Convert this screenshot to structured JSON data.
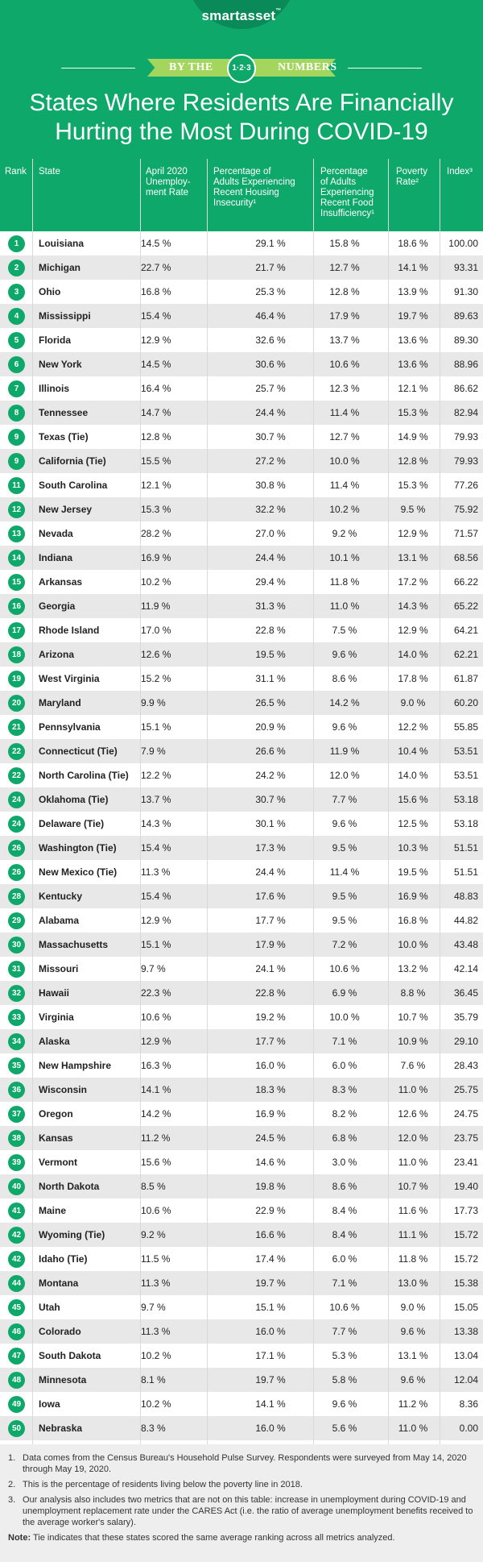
{
  "header": {
    "logo": "smartasset",
    "logo_mark": "™",
    "ribbon_left": "BY THE",
    "ribbon_center": "1·2·3",
    "ribbon_right": "NUMBERS",
    "title_line1": "States Where Residents Are Financially",
    "title_line2": "Hurting the Most During COVID-19"
  },
  "columns": {
    "rank": "Rank",
    "state": "State",
    "unemployment": [
      "April 2020",
      "Unemploy-",
      "ment Rate"
    ],
    "housing": [
      "Percentage of",
      "Adults Experiencing",
      "Recent Housing",
      "Insecurity¹"
    ],
    "food": [
      "Percentage",
      "of Adults",
      "Experiencing",
      "Recent Food",
      "Insufficiency¹"
    ],
    "poverty": [
      "Poverty",
      "Rate²"
    ],
    "index": "Index³"
  },
  "rows": [
    {
      "rank": "1",
      "state": "Louisiana",
      "unemployment": "14.5 %",
      "housing": "29.1 %",
      "food": "15.8 %",
      "poverty": "18.6 %",
      "index": "100.00"
    },
    {
      "rank": "2",
      "state": "Michigan",
      "unemployment": "22.7 %",
      "housing": "21.7 %",
      "food": "12.7 %",
      "poverty": "14.1 %",
      "index": "93.31"
    },
    {
      "rank": "3",
      "state": "Ohio",
      "unemployment": "16.8 %",
      "housing": "25.3 %",
      "food": "12.8 %",
      "poverty": "13.9 %",
      "index": "91.30"
    },
    {
      "rank": "4",
      "state": "Mississippi",
      "unemployment": "15.4 %",
      "housing": "46.4 %",
      "food": "17.9 %",
      "poverty": "19.7 %",
      "index": "89.63"
    },
    {
      "rank": "5",
      "state": "Florida",
      "unemployment": "12.9 %",
      "housing": "32.6 %",
      "food": "13.7 %",
      "poverty": "13.6 %",
      "index": "89.30"
    },
    {
      "rank": "6",
      "state": "New York",
      "unemployment": "14.5 %",
      "housing": "30.6 %",
      "food": "10.6 %",
      "poverty": "13.6 %",
      "index": "88.96"
    },
    {
      "rank": "7",
      "state": "Illinois",
      "unemployment": "16.4 %",
      "housing": "25.7 %",
      "food": "12.3 %",
      "poverty": "12.1 %",
      "index": "86.62"
    },
    {
      "rank": "8",
      "state": "Tennessee",
      "unemployment": "14.7 %",
      "housing": "24.4 %",
      "food": "11.4 %",
      "poverty": "15.3 %",
      "index": "82.94"
    },
    {
      "rank": "9",
      "state": "Texas (Tie)",
      "unemployment": "12.8 %",
      "housing": "30.7 %",
      "food": "12.7 %",
      "poverty": "14.9 %",
      "index": "79.93"
    },
    {
      "rank": "9",
      "state": "California (Tie)",
      "unemployment": "15.5 %",
      "housing": "27.2 %",
      "food": "10.0 %",
      "poverty": "12.8 %",
      "index": "79.93"
    },
    {
      "rank": "11",
      "state": "South Carolina",
      "unemployment": "12.1 %",
      "housing": "30.8 %",
      "food": "11.4 %",
      "poverty": "15.3 %",
      "index": "77.26"
    },
    {
      "rank": "12",
      "state": "New Jersey",
      "unemployment": "15.3 %",
      "housing": "32.2 %",
      "food": "10.2 %",
      "poverty": "9.5 %",
      "index": "75.92"
    },
    {
      "rank": "13",
      "state": "Nevada",
      "unemployment": "28.2 %",
      "housing": "27.0 %",
      "food": "9.2 %",
      "poverty": "12.9 %",
      "index": "71.57"
    },
    {
      "rank": "14",
      "state": "Indiana",
      "unemployment": "16.9 %",
      "housing": "24.4 %",
      "food": "10.1 %",
      "poverty": "13.1 %",
      "index": "68.56"
    },
    {
      "rank": "15",
      "state": "Arkansas",
      "unemployment": "10.2 %",
      "housing": "29.4 %",
      "food": "11.8 %",
      "poverty": "17.2 %",
      "index": "66.22"
    },
    {
      "rank": "16",
      "state": "Georgia",
      "unemployment": "11.9 %",
      "housing": "31.3 %",
      "food": "11.0 %",
      "poverty": "14.3 %",
      "index": "65.22"
    },
    {
      "rank": "17",
      "state": "Rhode Island",
      "unemployment": "17.0 %",
      "housing": "22.8 %",
      "food": "7.5 %",
      "poverty": "12.9 %",
      "index": "64.21"
    },
    {
      "rank": "18",
      "state": "Arizona",
      "unemployment": "12.6 %",
      "housing": "19.5 %",
      "food": "9.6 %",
      "poverty": "14.0 %",
      "index": "62.21"
    },
    {
      "rank": "19",
      "state": "West Virginia",
      "unemployment": "15.2 %",
      "housing": "31.1 %",
      "food": "8.6 %",
      "poverty": "17.8 %",
      "index": "61.87"
    },
    {
      "rank": "20",
      "state": "Maryland",
      "unemployment": "9.9 %",
      "housing": "26.5 %",
      "food": "14.2 %",
      "poverty": "9.0 %",
      "index": "60.20"
    },
    {
      "rank": "21",
      "state": "Pennsylvania",
      "unemployment": "15.1 %",
      "housing": "20.9 %",
      "food": "9.6 %",
      "poverty": "12.2 %",
      "index": "55.85"
    },
    {
      "rank": "22",
      "state": "Connecticut (Tie)",
      "unemployment": "7.9 %",
      "housing": "26.6 %",
      "food": "11.9 %",
      "poverty": "10.4 %",
      "index": "53.51"
    },
    {
      "rank": "22",
      "state": "North Carolina (Tie)",
      "unemployment": "12.2 %",
      "housing": "24.2 %",
      "food": "12.0 %",
      "poverty": "14.0 %",
      "index": "53.51"
    },
    {
      "rank": "24",
      "state": "Oklahoma (Tie)",
      "unemployment": "13.7 %",
      "housing": "30.7 %",
      "food": "7.7 %",
      "poverty": "15.6 %",
      "index": "53.18"
    },
    {
      "rank": "24",
      "state": "Delaware (Tie)",
      "unemployment": "14.3 %",
      "housing": "30.1 %",
      "food": "9.6 %",
      "poverty": "12.5 %",
      "index": "53.18"
    },
    {
      "rank": "26",
      "state": "Washington (Tie)",
      "unemployment": "15.4 %",
      "housing": "17.3 %",
      "food": "9.5 %",
      "poverty": "10.3 %",
      "index": "51.51"
    },
    {
      "rank": "26",
      "state": "New Mexico (Tie)",
      "unemployment": "11.3 %",
      "housing": "24.4 %",
      "food": "11.4 %",
      "poverty": "19.5 %",
      "index": "51.51"
    },
    {
      "rank": "28",
      "state": "Kentucky",
      "unemployment": "15.4 %",
      "housing": "17.6 %",
      "food": "9.5 %",
      "poverty": "16.9 %",
      "index": "48.83"
    },
    {
      "rank": "29",
      "state": "Alabama",
      "unemployment": "12.9 %",
      "housing": "17.7 %",
      "food": "9.5 %",
      "poverty": "16.8 %",
      "index": "44.82"
    },
    {
      "rank": "30",
      "state": "Massachusetts",
      "unemployment": "15.1 %",
      "housing": "17.9 %",
      "food": "7.2 %",
      "poverty": "10.0 %",
      "index": "43.48"
    },
    {
      "rank": "31",
      "state": "Missouri",
      "unemployment": "9.7 %",
      "housing": "24.1 %",
      "food": "10.6 %",
      "poverty": "13.2 %",
      "index": "42.14"
    },
    {
      "rank": "32",
      "state": "Hawaii",
      "unemployment": "22.3 %",
      "housing": "22.8 %",
      "food": "6.9 %",
      "poverty": "8.8 %",
      "index": "36.45"
    },
    {
      "rank": "33",
      "state": "Virginia",
      "unemployment": "10.6 %",
      "housing": "19.2 %",
      "food": "10.0 %",
      "poverty": "10.7 %",
      "index": "35.79"
    },
    {
      "rank": "34",
      "state": "Alaska",
      "unemployment": "12.9 %",
      "housing": "17.7 %",
      "food": "7.1 %",
      "poverty": "10.9 %",
      "index": "29.10"
    },
    {
      "rank": "35",
      "state": "New Hampshire",
      "unemployment": "16.3 %",
      "housing": "16.0 %",
      "food": "6.0 %",
      "poverty": "7.6 %",
      "index": "28.43"
    },
    {
      "rank": "36",
      "state": "Wisconsin",
      "unemployment": "14.1 %",
      "housing": "18.3 %",
      "food": "8.3 %",
      "poverty": "11.0 %",
      "index": "25.75"
    },
    {
      "rank": "37",
      "state": "Oregon",
      "unemployment": "14.2 %",
      "housing": "16.9 %",
      "food": "8.2 %",
      "poverty": "12.6 %",
      "index": "24.75"
    },
    {
      "rank": "38",
      "state": "Kansas",
      "unemployment": "11.2 %",
      "housing": "24.5 %",
      "food": "6.8 %",
      "poverty": "12.0 %",
      "index": "23.75"
    },
    {
      "rank": "39",
      "state": "Vermont",
      "unemployment": "15.6 %",
      "housing": "14.6 %",
      "food": "3.0 %",
      "poverty": "11.0 %",
      "index": "23.41"
    },
    {
      "rank": "40",
      "state": "North Dakota",
      "unemployment": "8.5 %",
      "housing": "19.8 %",
      "food": "8.6 %",
      "poverty": "10.7 %",
      "index": "19.40"
    },
    {
      "rank": "41",
      "state": "Maine",
      "unemployment": "10.6 %",
      "housing": "22.9 %",
      "food": "8.4 %",
      "poverty": "11.6 %",
      "index": "17.73"
    },
    {
      "rank": "42",
      "state": "Wyoming (Tie)",
      "unemployment": "9.2 %",
      "housing": "16.6 %",
      "food": "8.4 %",
      "poverty": "11.1 %",
      "index": "15.72"
    },
    {
      "rank": "42",
      "state": "Idaho (Tie)",
      "unemployment": "11.5 %",
      "housing": "17.4 %",
      "food": "6.0 %",
      "poverty": "11.8 %",
      "index": "15.72"
    },
    {
      "rank": "44",
      "state": "Montana",
      "unemployment": "11.3 %",
      "housing": "19.7 %",
      "food": "7.1 %",
      "poverty": "13.0 %",
      "index": "15.38"
    },
    {
      "rank": "45",
      "state": "Utah",
      "unemployment": "9.7 %",
      "housing": "15.1 %",
      "food": "10.6 %",
      "poverty": "9.0 %",
      "index": "15.05"
    },
    {
      "rank": "46",
      "state": "Colorado",
      "unemployment": "11.3 %",
      "housing": "16.0 %",
      "food": "7.7 %",
      "poverty": "9.6 %",
      "index": "13.38"
    },
    {
      "rank": "47",
      "state": "South Dakota",
      "unemployment": "10.2 %",
      "housing": "17.1 %",
      "food": "5.3 %",
      "poverty": "13.1 %",
      "index": "13.04"
    },
    {
      "rank": "48",
      "state": "Minnesota",
      "unemployment": "8.1 %",
      "housing": "19.7 %",
      "food": "5.8 %",
      "poverty": "9.6 %",
      "index": "12.04"
    },
    {
      "rank": "49",
      "state": "Iowa",
      "unemployment": "10.2 %",
      "housing": "14.1 %",
      "food": "9.6 %",
      "poverty": "11.2 %",
      "index": "8.36"
    },
    {
      "rank": "50",
      "state": "Nebraska",
      "unemployment": "8.3 %",
      "housing": "16.0 %",
      "food": "5.6 %",
      "poverty": "11.0 %",
      "index": "0.00"
    }
  ],
  "notes": [
    {
      "num": "1.",
      "text": "Data comes from the Census Bureau's Household Pulse Survey. Respondents were surveyed from May 14, 2020 through May 19, 2020."
    },
    {
      "num": "2.",
      "text": "This is the percentage of residents living below the poverty line in 2018."
    },
    {
      "num": "3.",
      "text": "Our analysis also includes two metrics that are not on this table: increase in unemployment during COVID-19 and unemployment replacement rate under the CARES Act (i.e. the ratio of average unemployment benefits received to the average worker's salary)."
    }
  ],
  "final_note": {
    "label": "Note:",
    "text": " Tie indicates that these states scored the same average ranking across all metrics analyzed."
  },
  "colors": {
    "brand_green": "#0fa86b",
    "ribbon_green": "#a4d65e",
    "row_alt": "#e8e8e8"
  }
}
